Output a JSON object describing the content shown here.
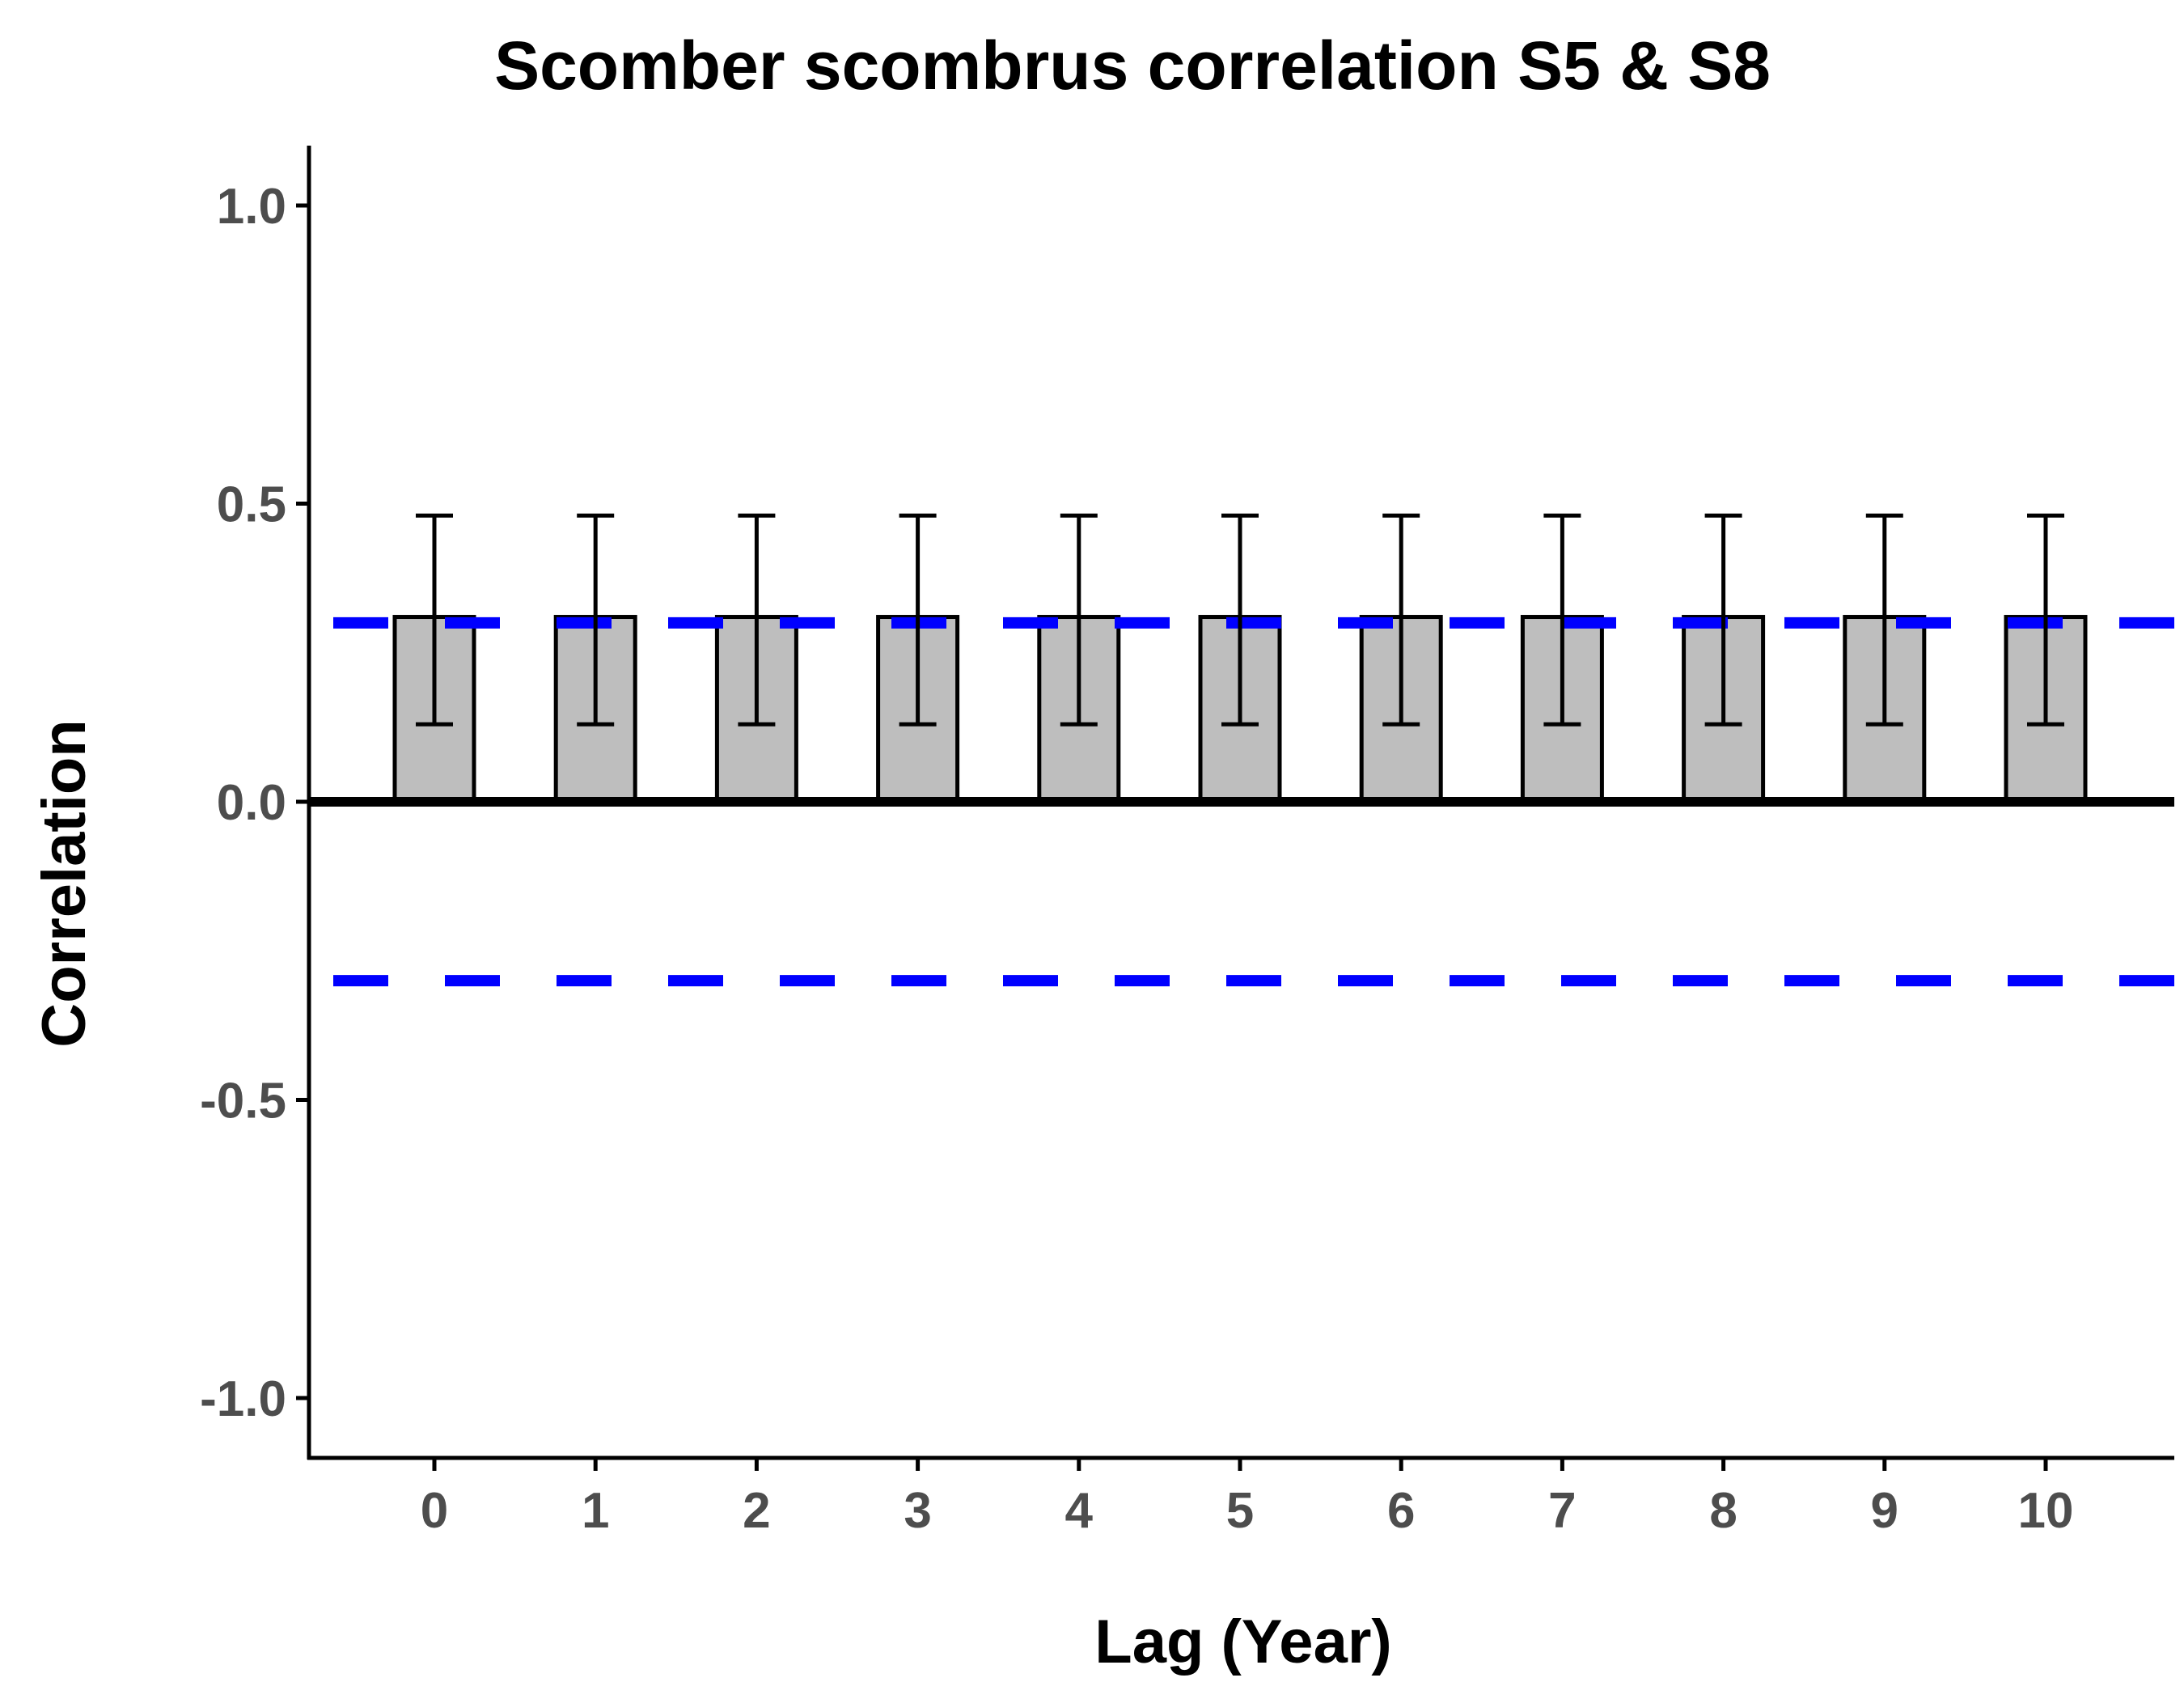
{
  "chart_data": {
    "type": "bar",
    "title": "Scomber scombrus correlation S5 & S8",
    "xlabel": "Lag (Year)",
    "ylabel": "Correlation",
    "categories": [
      "0",
      "1",
      "2",
      "3",
      "4",
      "5",
      "6",
      "7",
      "8",
      "9",
      "10"
    ],
    "values": [
      0.31,
      0.31,
      0.31,
      0.31,
      0.31,
      0.31,
      0.31,
      0.31,
      0.31,
      0.31,
      0.31
    ],
    "error_lower": [
      0.13,
      0.13,
      0.13,
      0.13,
      0.13,
      0.13,
      0.13,
      0.13,
      0.13,
      0.13,
      0.13
    ],
    "error_upper": [
      0.48,
      0.48,
      0.48,
      0.48,
      0.48,
      0.48,
      0.48,
      0.48,
      0.48,
      0.48,
      0.48
    ],
    "ylim": [
      -1.1,
      1.1
    ],
    "yticks": [
      1.0,
      0.5,
      0.0,
      -0.5,
      -1.0
    ],
    "ytick_labels": [
      "1.0",
      "0.5",
      "0.0",
      "-0.5",
      "-1.0"
    ],
    "significance_bounds": [
      0.3,
      -0.3
    ],
    "grid": false,
    "legend": "none",
    "colors": {
      "bar_fill": "#bebebe",
      "bar_stroke": "#000000",
      "error_bar": "#000000",
      "zero_line": "#000000",
      "significance_line": "#0000ff",
      "axis": "#000000",
      "tick_label": "#4d4d4d"
    }
  }
}
